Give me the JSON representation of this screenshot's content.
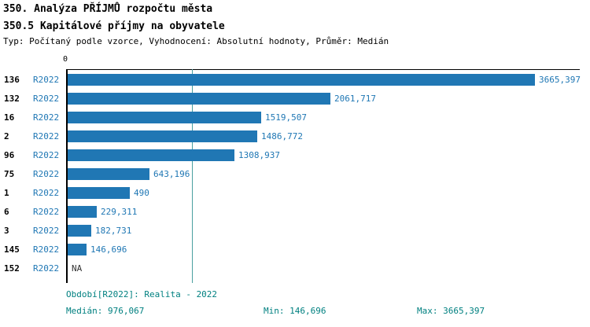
{
  "header": {
    "title": "350. Analýza PŘÍJMŮ rozpočtu města",
    "subtitle": "350.5 Kapitálové příjmy na obyvatele",
    "meta_line": "Typ: Počítaný podle vzorce, Vyhodnocení: Absolutní hodnoty, Průměr: Medián"
  },
  "axis": {
    "zero_label": "0"
  },
  "footer": {
    "period": "Období[R2022]: Realita - 2022",
    "median": "Medián: 976,067",
    "min": "Min: 146,696",
    "max": "Max: 3665,397"
  },
  "colors": {
    "bar": "#2077b4",
    "label_blue": "#1f77b4",
    "footer_teal": "#008080",
    "median_line": "#4aa0a0"
  },
  "chart_data": {
    "type": "bar",
    "orientation": "horizontal",
    "title": "350.5 Kapitálové příjmy na obyvatele",
    "series_label": "R2022",
    "categories": [
      "136",
      "132",
      "16",
      "2",
      "96",
      "75",
      "1",
      "6",
      "3",
      "145",
      "152"
    ],
    "values": [
      3665.397,
      2061.717,
      1519.507,
      1486.772,
      1308.937,
      643.196,
      490,
      229.311,
      182.731,
      146.696,
      null
    ],
    "value_labels": [
      "3665,397",
      "2061,717",
      "1519,507",
      "1486,772",
      "1308,937",
      "643,196",
      "490",
      "229,311",
      "182,731",
      "146,696",
      "NA"
    ],
    "median": 976.067,
    "min": 146.696,
    "max": 3665.397,
    "xlim": [
      0,
      3700
    ],
    "grid": false,
    "legend": "none"
  }
}
